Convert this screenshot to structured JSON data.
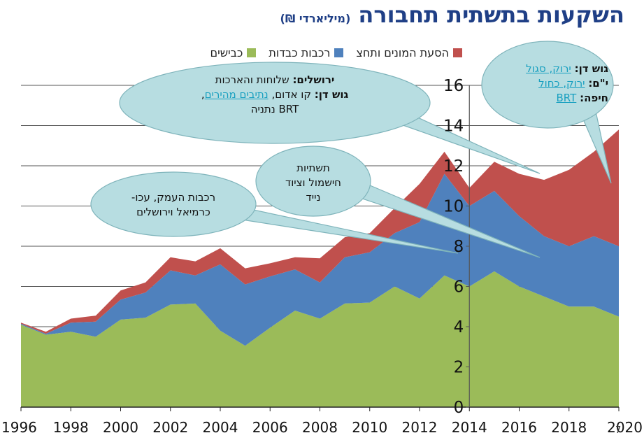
{
  "title": {
    "main": "השקעות בתשתית תחבורה",
    "unit": "(מיליארדי ₪)"
  },
  "legend": [
    {
      "label": "הסעת המונים ותחצ",
      "color": "#c0504d"
    },
    {
      "label": "רכבות כבדות",
      "color": "#4f81bd"
    },
    {
      "label": "כבישים",
      "color": "#9bbb59"
    }
  ],
  "chart_data": {
    "type": "area",
    "stacked": true,
    "x": [
      1996,
      1997,
      1998,
      1999,
      2000,
      2001,
      2002,
      2003,
      2004,
      2005,
      2006,
      2007,
      2008,
      2009,
      2010,
      2011,
      2012,
      2013,
      2014,
      2015,
      2016,
      2017,
      2018,
      2019,
      2020
    ],
    "series": [
      {
        "name": "כבישים",
        "color": "#9bbb59",
        "values": [
          4.1,
          3.6,
          3.75,
          3.5,
          4.35,
          4.45,
          5.1,
          5.15,
          3.8,
          3.05,
          3.95,
          4.8,
          4.4,
          5.15,
          5.2,
          6.0,
          5.4,
          6.55,
          6.0,
          6.75,
          6.0,
          5.5,
          5.0,
          5.0,
          4.5
        ]
      },
      {
        "name": "רכבות כבדות",
        "color": "#4f81bd",
        "values": [
          0.05,
          0.05,
          0.45,
          0.75,
          1.0,
          1.25,
          1.7,
          1.4,
          3.3,
          3.05,
          2.55,
          2.05,
          1.8,
          2.3,
          2.5,
          2.65,
          3.8,
          5.05,
          4.0,
          4.0,
          3.5,
          3.0,
          3.0,
          3.5,
          3.5
        ]
      },
      {
        "name": "הסעת המונים ותחצ",
        "color": "#c0504d",
        "values": [
          0.05,
          0.1,
          0.2,
          0.3,
          0.45,
          0.5,
          0.65,
          0.7,
          0.8,
          0.8,
          0.65,
          0.6,
          1.2,
          1.0,
          0.95,
          1.25,
          1.9,
          1.1,
          0.9,
          1.45,
          2.1,
          2.8,
          3.8,
          4.2,
          5.8
        ]
      }
    ],
    "ylim": [
      0,
      16
    ],
    "yticks": [
      0,
      2,
      4,
      6,
      8,
      10,
      12,
      14,
      16
    ],
    "xticks": [
      1996,
      1998,
      2000,
      2002,
      2004,
      2006,
      2008,
      2010,
      2012,
      2014,
      2016,
      2018,
      2020
    ],
    "grid": true,
    "legend_position": "top"
  },
  "callouts": {
    "jerusalem": {
      "line1_bold": "ירושלים:",
      "line1": " שלוחות והארכות",
      "line2_bold": "גוש דן:",
      "line2_a": " קו אדום, ",
      "line2_link": "נתיבים מהירים",
      "line2_b": ",",
      "line3": "BRT נתניה"
    },
    "rail": {
      "line1": "תשתיות",
      "line2": "חישמול וציוד",
      "line3": "נייד"
    },
    "valley": {
      "line1": "רכבות העמק, עכו-",
      "line2": "כרמיאל וירושלים"
    },
    "metro": {
      "row1_bold": "גוש דן:",
      "row1_link": "ירוק, סגול",
      "row2_bold": "י\"ם:",
      "row2_link": "ירוק, כחול",
      "row3_bold": "חיפה:",
      "row3_link": "BRT"
    }
  },
  "page_number": "7"
}
